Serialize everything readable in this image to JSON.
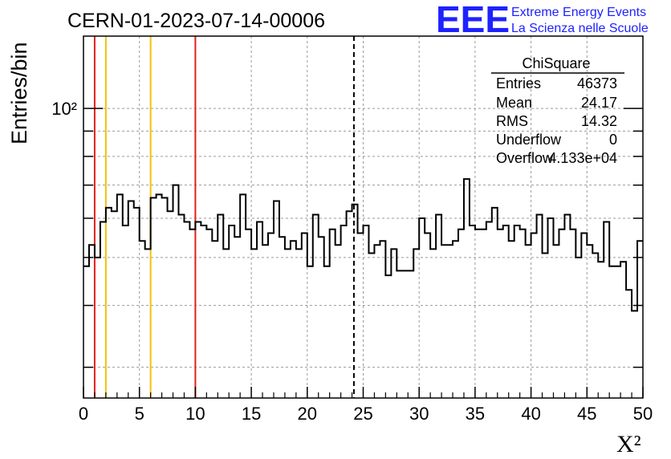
{
  "title": "CERN-01-2023-07-14-00006",
  "logo": {
    "mark": "EEE",
    "line1": "Extreme Energy Events",
    "line2": "La Scienza nelle Scuole",
    "color": "#1e22ff"
  },
  "stats": {
    "name": "ChiSquare",
    "rows": [
      {
        "label": "Entries",
        "value": "46373"
      },
      {
        "label": "Mean",
        "value": "24.17"
      },
      {
        "label": "RMS",
        "value": "14.32"
      },
      {
        "label": "Underflow",
        "value": "0"
      },
      {
        "label": "Overflow",
        "value": "4.133e+04"
      }
    ]
  },
  "chart_data": {
    "type": "bar",
    "title": "CERN-01-2023-07-14-00006",
    "xlabel": "X²",
    "ylabel": "Entries/bin",
    "xlim": [
      0,
      50
    ],
    "ylim": [
      26,
      140
    ],
    "log_y": true,
    "grid": true,
    "x_ticks": [
      "0",
      "5",
      "10",
      "15",
      "20",
      "25",
      "30",
      "35",
      "40",
      "45",
      "50"
    ],
    "y_tick_label": "10²",
    "bin_width": 0.5,
    "values": [
      48,
      53,
      50,
      59,
      63,
      62,
      67,
      58,
      65,
      63,
      54,
      52,
      66,
      67,
      66,
      62,
      70,
      61,
      59,
      57,
      59,
      58,
      57,
      54,
      61,
      52,
      58,
      55,
      67,
      57,
      52,
      59,
      53,
      56,
      65,
      55,
      52,
      54,
      52,
      56,
      48,
      61,
      55,
      48,
      57,
      53,
      58,
      62,
      64,
      56,
      58,
      51,
      53,
      54,
      46,
      52,
      47,
      47,
      47,
      52,
      60,
      56,
      52,
      61,
      53,
      53,
      54,
      57,
      72,
      58,
      57,
      57,
      59,
      63,
      57,
      58,
      54,
      58,
      57,
      53,
      56,
      61,
      51,
      60,
      53,
      57,
      61,
      57,
      50,
      56,
      53,
      51,
      49,
      59,
      48,
      48,
      49,
      43,
      39,
      54
    ],
    "vertical_lines": [
      {
        "x": 1,
        "color": "#e0201b",
        "style": "solid"
      },
      {
        "x": 2,
        "color": "#f2c010",
        "style": "solid"
      },
      {
        "x": 6,
        "color": "#f2c010",
        "style": "solid"
      },
      {
        "x": 10,
        "color": "#e0201b",
        "style": "solid"
      },
      {
        "x": 24.17,
        "color": "#000000",
        "style": "dashed"
      }
    ]
  }
}
